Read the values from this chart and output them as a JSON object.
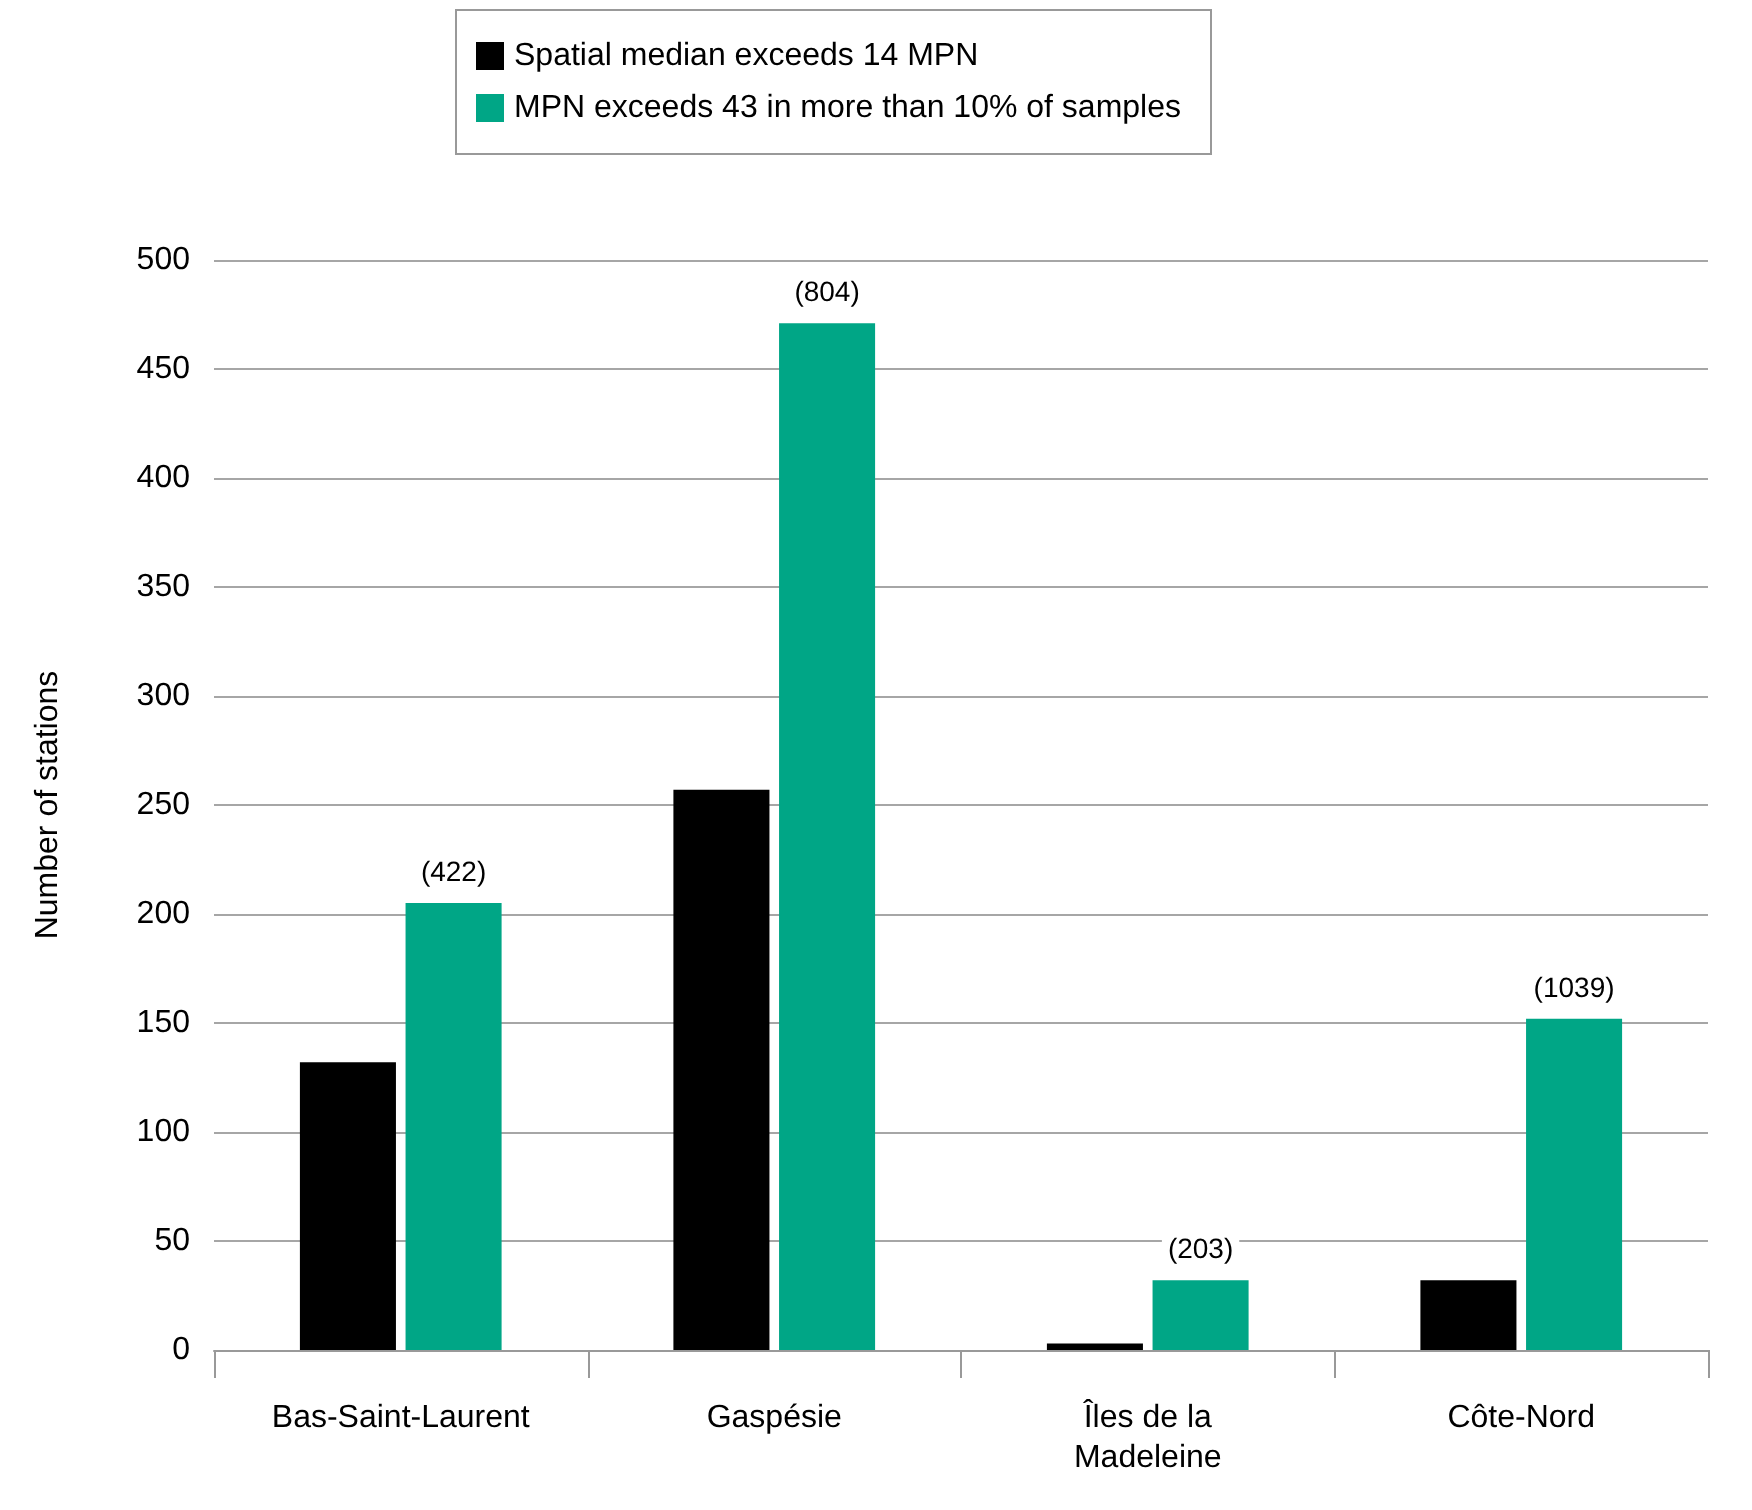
{
  "chart_data": {
    "type": "bar",
    "ylabel": "Number of stations",
    "categories": [
      "Bas-Saint-Laurent",
      "Gaspésie",
      "Îles de la\nMadeleine",
      "Côte-Nord"
    ],
    "series": [
      {
        "name": "Spatial median exceeds 14 MPN",
        "color": "#000000",
        "values": [
          132,
          257,
          3,
          32
        ]
      },
      {
        "name": "MPN exceeds 43 in more than 10% of samples",
        "color": "#00a686",
        "values": [
          205,
          471,
          32,
          152
        ]
      }
    ],
    "annotations": [
      {
        "text": "(422)",
        "x": "Bas-Saint-Laurent",
        "y": 205
      },
      {
        "text": "(804)",
        "x": "Gaspésie",
        "y": 471
      },
      {
        "text": "(203)",
        "x": "Îles de la\nMadeleine",
        "y": 32
      },
      {
        "text": "(1039)",
        "x": "Côte-Nord",
        "y": 152
      }
    ],
    "ylim": [
      0,
      500
    ],
    "yticks": [
      0,
      50,
      100,
      150,
      200,
      250,
      300,
      350,
      400,
      450,
      500
    ],
    "grid": "y",
    "legend": "top"
  }
}
